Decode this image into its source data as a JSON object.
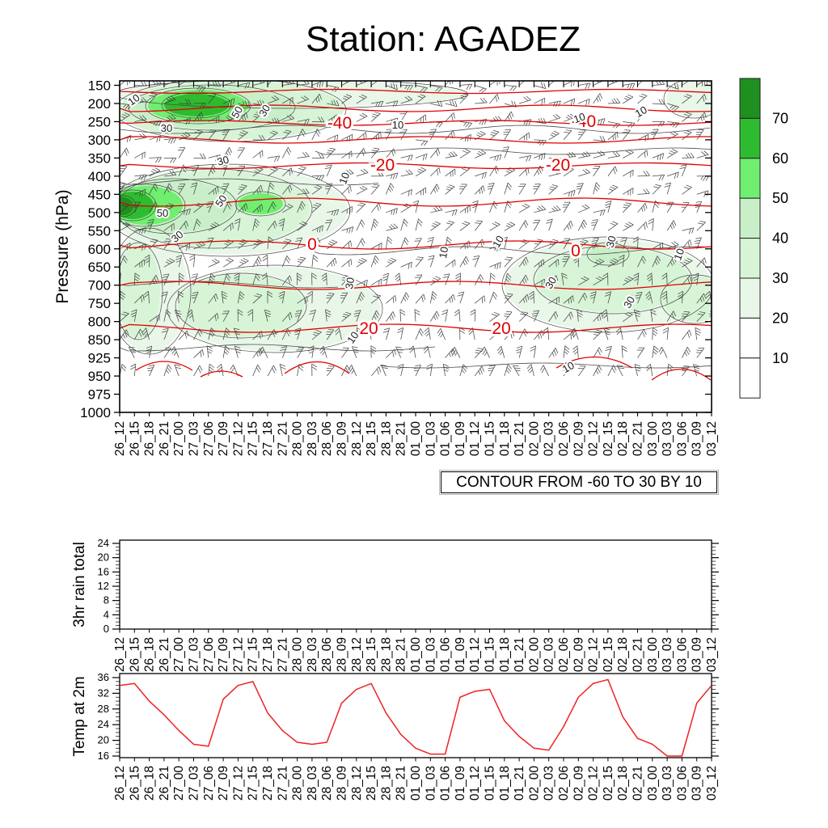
{
  "title": "Station: AGADEZ",
  "main_chart": {
    "ylabel": "Pressure (hPa)",
    "contour_note": "CONTOUR FROM -60 TO 30 BY 10",
    "pressure_levels": [
      "150",
      "200",
      "250",
      "300",
      "350",
      "400",
      "450",
      "500",
      "550",
      "600",
      "650",
      "700",
      "750",
      "800",
      "850",
      "925",
      "950",
      "975",
      "1000"
    ],
    "time_labels": [
      "26_12",
      "26_15",
      "26_18",
      "26_21",
      "27_00",
      "27_03",
      "27_06",
      "27_09",
      "27_12",
      "27_15",
      "27_18",
      "27_21",
      "28_00",
      "28_03",
      "28_06",
      "28_09",
      "28_12",
      "28_15",
      "28_18",
      "28_21",
      "01_00",
      "01_03",
      "01_06",
      "01_09",
      "01_12",
      "01_15",
      "01_18",
      "01_21",
      "02_00",
      "02_03",
      "02_06",
      "02_09",
      "02_12",
      "02_15",
      "02_18",
      "02_21",
      "03_00",
      "03_03",
      "03_06",
      "03_09",
      "03_12"
    ],
    "colorbar": {
      "labels_top_to_bottom": [
        "70",
        "60",
        "50",
        "40",
        "30",
        "20",
        "10"
      ],
      "colors_top_to_bottom": [
        "#1f8f1f",
        "#2fbb2f",
        "#70ee70",
        "#c9efc9",
        "#d7f4d7",
        "#e9f7e9",
        "#ffffff",
        "#ffffff"
      ]
    },
    "colors": {
      "temperature_contour": "#e00000",
      "rh_contour": "#4a4a4a",
      "wind_barb": "#383838"
    }
  },
  "chart_data": [
    {
      "type": "heatmap",
      "title": "Station: AGADEZ",
      "ylabel": "Pressure (hPa)",
      "x_labels": [
        "26_12",
        "26_15",
        "26_18",
        "26_21",
        "27_00",
        "27_03",
        "27_06",
        "27_09",
        "27_12",
        "27_15",
        "27_18",
        "27_21",
        "28_00",
        "28_03",
        "28_06",
        "28_09",
        "28_12",
        "28_15",
        "28_18",
        "28_21",
        "01_00",
        "01_03",
        "01_06",
        "01_09",
        "01_12",
        "01_15",
        "01_18",
        "01_21",
        "02_00",
        "02_03",
        "02_06",
        "02_09",
        "02_12",
        "02_15",
        "02_18",
        "02_21",
        "03_00",
        "03_03",
        "03_06",
        "03_09",
        "03_12"
      ],
      "y_labels": [
        "150",
        "200",
        "250",
        "300",
        "350",
        "400",
        "450",
        "500",
        "550",
        "600",
        "650",
        "700",
        "750",
        "800",
        "850",
        "925",
        "950",
        "975",
        "1000"
      ],
      "legend_levels": [
        10,
        20,
        30,
        40,
        50,
        60,
        70
      ],
      "description": "Time-pressure cross-section: green shading = relative humidity (%), red contours = temperature (C) from -60 to 30 by 10, black thin contours = RH labeled 10/30/50, wind barbs at every grid point",
      "temperature_contours": [
        {
          "value": -60,
          "y": 113,
          "amp": 2.5,
          "labels": []
        },
        {
          "value": -50,
          "y": 134,
          "amp": 4,
          "labels": []
        },
        {
          "value": -40,
          "y": 152,
          "amp": 3,
          "labels": [
            [
              420,
              152
            ],
            [
              722,
              150
            ]
          ]
        },
        {
          "value": -30,
          "y": 173,
          "amp": 4,
          "labels": []
        },
        {
          "value": -20,
          "y": 205,
          "amp": 3.5,
          "labels": [
            [
              473,
              204
            ],
            [
              690,
              204
            ]
          ]
        },
        {
          "value": -10,
          "y": 250,
          "amp": 5,
          "labels": []
        },
        {
          "value": 0,
          "y": 303,
          "amp": 5,
          "labels": [
            [
              386,
              302
            ],
            [
              712,
              310
            ]
          ]
        },
        {
          "value": 10,
          "y": 353,
          "amp": 5,
          "labels": []
        },
        {
          "value": 20,
          "y": 406,
          "amp": 5,
          "labels": [
            [
              456,
              406
            ],
            [
              620,
              406
            ]
          ]
        }
      ],
      "temperature_contour_arcs": {
        "value": 30,
        "arcs": [
          [
            168,
            238,
            436,
            458
          ],
          [
            248,
            300,
            452,
            466
          ],
          [
            352,
            432,
            433,
            462
          ],
          [
            688,
            782,
            428,
            455
          ],
          [
            806,
            879,
            443,
            470
          ]
        ]
      },
      "humidity_regions": [
        {
          "level": 20,
          "cx": 360,
          "cy": 116,
          "rx": 215,
          "ry": 16
        },
        {
          "level": 30,
          "cx": 285,
          "cy": 136,
          "rx": 140,
          "ry": 37
        },
        {
          "level": 40,
          "cx": 262,
          "cy": 133,
          "rx": 100,
          "ry": 26
        },
        {
          "level": 50,
          "cx": 245,
          "cy": 131,
          "rx": 62,
          "ry": 20
        },
        {
          "level": 60,
          "cx": 243,
          "cy": 130,
          "rx": 40,
          "ry": 14
        },
        {
          "level": 20,
          "cx": 858,
          "cy": 122,
          "rx": 34,
          "ry": 22
        },
        {
          "level": 20,
          "cx": 282,
          "cy": 260,
          "rx": 148,
          "ry": 55
        },
        {
          "level": 30,
          "cx": 265,
          "cy": 258,
          "rx": 118,
          "ry": 47
        },
        {
          "level": 40,
          "cx": 215,
          "cy": 255,
          "rx": 75,
          "ry": 32
        },
        {
          "level": 50,
          "cx": 180,
          "cy": 254,
          "rx": 46,
          "ry": 24
        },
        {
          "level": 50,
          "cx": 322,
          "cy": 252,
          "rx": 28,
          "ry": 13
        },
        {
          "level": 60,
          "cx": 164,
          "cy": 254,
          "rx": 26,
          "ry": 17
        },
        {
          "level": 70,
          "cx": 152,
          "cy": 255,
          "rx": 13,
          "ry": 11
        },
        {
          "level": 20,
          "cx": 185,
          "cy": 360,
          "rx": 48,
          "ry": 76
        },
        {
          "level": 30,
          "cx": 171,
          "cy": 360,
          "rx": 27,
          "ry": 58
        },
        {
          "level": 20,
          "cx": 340,
          "cy": 382,
          "rx": 130,
          "ry": 52
        },
        {
          "level": 30,
          "cx": 298,
          "cy": 378,
          "rx": 78,
          "ry": 38
        },
        {
          "level": 20,
          "cx": 752,
          "cy": 352,
          "rx": 128,
          "ry": 57
        },
        {
          "level": 30,
          "cx": 758,
          "cy": 346,
          "rx": 95,
          "ry": 40
        },
        {
          "level": 40,
          "cx": 752,
          "cy": 314,
          "rx": 23,
          "ry": 12
        },
        {
          "level": 30,
          "cx": 860,
          "cy": 370,
          "rx": 40,
          "ry": 28
        }
      ],
      "rh_level_colors": {
        "20": "#e9f7e9",
        "30": "#d7f4d7",
        "40": "#c9efc9",
        "50": "#70ee70",
        "60": "#2fbb2f",
        "70": "#1f8f1f"
      },
      "rh_contour_lines": [
        {
          "y": 160,
          "x1": 148,
          "x2": 880,
          "amp": 5,
          "ph": 0
        },
        {
          "y": 187,
          "x1": 390,
          "x2": 880,
          "amp": 4,
          "ph": 1.2
        },
        {
          "y": 225,
          "x1": 148,
          "x2": 470,
          "amp": 4,
          "ph": 2
        },
        {
          "y": 310,
          "x1": 385,
          "x2": 880,
          "amp": 5,
          "ph": 0.6
        },
        {
          "y": 352,
          "x1": 148,
          "x2": 420,
          "amp": 4,
          "ph": 2.6
        },
        {
          "y": 430,
          "x1": 148,
          "x2": 545,
          "amp": 4,
          "ph": 1.1
        },
        {
          "y": 452,
          "x1": 470,
          "x2": 880,
          "amp": 3,
          "ph": 0.3
        }
      ],
      "rh_labels": [
        {
          "v": "10",
          "x": 168,
          "y": 127,
          "a": -35
        },
        {
          "v": "30",
          "x": 206,
          "y": 163,
          "a": 0
        },
        {
          "v": "50",
          "x": 297,
          "y": 141,
          "a": -60
        },
        {
          "v": "30",
          "x": 331,
          "y": 139,
          "a": -60
        },
        {
          "v": "10",
          "x": 492,
          "y": 159,
          "a": 0
        },
        {
          "v": "10",
          "x": 718,
          "y": 150,
          "a": -20
        },
        {
          "v": "10",
          "x": 795,
          "y": 142,
          "a": -30
        },
        {
          "v": "30",
          "x": 277,
          "y": 203,
          "a": -15
        },
        {
          "v": "10",
          "x": 430,
          "y": 222,
          "a": -70
        },
        {
          "v": "50",
          "x": 277,
          "y": 251,
          "a": -55
        },
        {
          "v": "50",
          "x": 201,
          "y": 268,
          "a": 0
        },
        {
          "v": "30",
          "x": 222,
          "y": 296,
          "a": -40
        },
        {
          "v": "30",
          "x": 437,
          "y": 351,
          "a": -80
        },
        {
          "v": "10",
          "x": 553,
          "y": 313,
          "a": -80
        },
        {
          "v": "10",
          "x": 620,
          "y": 301,
          "a": -60
        },
        {
          "v": "30",
          "x": 760,
          "y": 300,
          "a": -75
        },
        {
          "v": "30",
          "x": 685,
          "y": 352,
          "a": -60
        },
        {
          "v": "30",
          "x": 782,
          "y": 376,
          "a": -60
        },
        {
          "v": "10",
          "x": 844,
          "y": 316,
          "a": -70
        },
        {
          "v": "10",
          "x": 440,
          "y": 420,
          "a": -55
        },
        {
          "v": "10",
          "x": 705,
          "y": 458,
          "a": -30
        }
      ],
      "wind_barbs": {
        "note": "barb at each of 41 time steps x 17 upper levels (150-950 hPa)",
        "color": "#383838"
      }
    },
    {
      "type": "line",
      "ylabel": "3hr rain total",
      "x": [
        "26_12",
        "26_15",
        "26_18",
        "26_21",
        "27_00",
        "27_03",
        "27_06",
        "27_09",
        "27_12",
        "27_15",
        "27_18",
        "27_21",
        "28_00",
        "28_03",
        "28_06",
        "28_09",
        "28_12",
        "28_15",
        "28_18",
        "28_21",
        "01_00",
        "01_03",
        "01_06",
        "01_09",
        "01_12",
        "01_15",
        "01_18",
        "01_21",
        "02_00",
        "02_03",
        "02_06",
        "02_09",
        "02_12",
        "02_15",
        "02_18",
        "02_21",
        "03_00",
        "03_03",
        "03_06",
        "03_09",
        "03_12"
      ],
      "values": [
        0,
        0,
        0,
        0,
        0,
        0,
        0,
        0,
        0,
        0,
        0,
        0,
        0,
        0,
        0,
        0,
        0,
        0,
        0,
        0,
        0,
        0,
        0,
        0,
        0,
        0,
        0,
        0,
        0,
        0,
        0,
        0,
        0,
        0,
        0,
        0,
        0,
        0,
        0,
        0,
        0
      ],
      "yticks": [
        0,
        4,
        8,
        12,
        16,
        20,
        24
      ],
      "ylim": [
        0,
        25
      ]
    },
    {
      "type": "line",
      "ylabel": "Temp at 2m",
      "color": "#ee2222",
      "x": [
        "26_12",
        "26_15",
        "26_18",
        "26_21",
        "27_00",
        "27_03",
        "27_06",
        "27_09",
        "27_12",
        "27_15",
        "27_18",
        "27_21",
        "28_00",
        "28_03",
        "28_06",
        "28_09",
        "28_12",
        "28_15",
        "28_18",
        "28_21",
        "01_00",
        "01_03",
        "01_06",
        "01_09",
        "01_12",
        "01_15",
        "01_18",
        "01_21",
        "02_00",
        "02_03",
        "02_06",
        "02_09",
        "02_12",
        "02_15",
        "02_18",
        "02_21",
        "03_00",
        "03_03",
        "03_06",
        "03_09",
        "03_12"
      ],
      "values": [
        34,
        34.5,
        30,
        26.5,
        22.5,
        19,
        18.5,
        30.5,
        34,
        35,
        27,
        22.5,
        19.5,
        19,
        19.5,
        29.5,
        33,
        34.5,
        27,
        21.5,
        18,
        16.5,
        16.5,
        31,
        32.5,
        33,
        25,
        21,
        18,
        17.5,
        23.5,
        31,
        34.5,
        35.5,
        26,
        20.5,
        19,
        16,
        16,
        29.5,
        34
      ],
      "yticks": [
        16,
        20,
        24,
        28,
        32,
        36
      ],
      "ylim": [
        15,
        37
      ]
    }
  ]
}
